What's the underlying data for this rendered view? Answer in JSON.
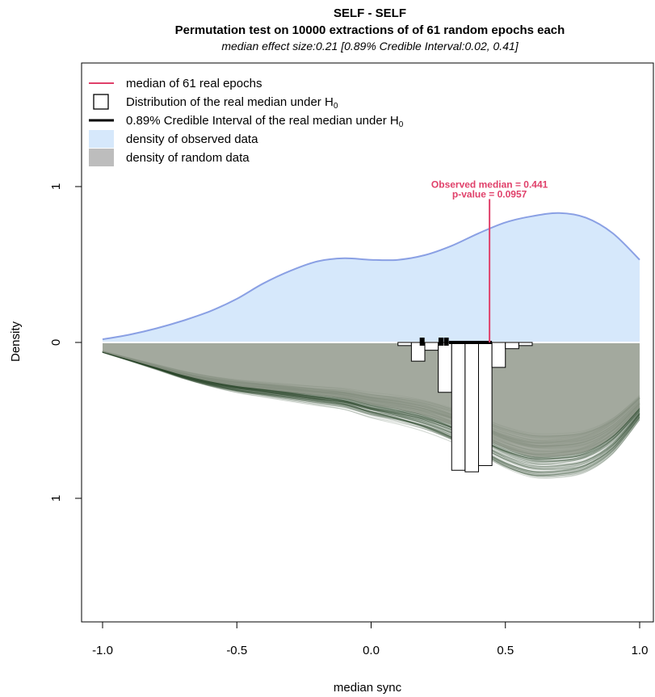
{
  "chart_data": {
    "type": "area",
    "title": "SELF - SELF",
    "subtitle": "Permutation test on 10000 extractions of of 61 random epochs each",
    "note": "median effect size:0.21 [0.89% Credible Interval:0.02, 0.41]",
    "xlabel": "median sync",
    "ylabel": "Density",
    "xlim": [
      -1.0,
      1.0
    ],
    "ylim": [
      -1.8,
      1.8
    ],
    "x_ticks": [
      -1.0,
      -0.5,
      0.0,
      0.5,
      1.0
    ],
    "x_tick_labels": [
      "-1.0",
      "-0.5",
      "0.0",
      "0.5",
      "1.0"
    ],
    "y_ticks": [
      1,
      0,
      -1
    ],
    "y_tick_labels": [
      "1",
      "0",
      "1"
    ],
    "grid": false,
    "legend_placement": "top-left",
    "legend": [
      {
        "label": "median of 61 real epochs",
        "symbol": "line",
        "color": "#e0406a"
      },
      {
        "label": "Distribution of the real median under H",
        "sub": "0",
        "symbol": "box",
        "color": "#000000"
      },
      {
        "label": "0.89% Credible Interval of the real median under H",
        "sub": "0",
        "symbol": "thick-line",
        "color": "#000000"
      },
      {
        "label": "density of observed data",
        "symbol": "fill",
        "color": "#d6e8fb"
      },
      {
        "label": "density of random data",
        "symbol": "fill",
        "color": "#bdbdbd"
      }
    ],
    "observed_density": {
      "x": [
        -1.0,
        -0.9,
        -0.8,
        -0.7,
        -0.6,
        -0.5,
        -0.4,
        -0.3,
        -0.2,
        -0.1,
        0.0,
        0.1,
        0.2,
        0.3,
        0.4,
        0.5,
        0.6,
        0.7,
        0.8,
        0.9,
        1.0
      ],
      "y": [
        0.02,
        0.05,
        0.09,
        0.14,
        0.2,
        0.28,
        0.38,
        0.46,
        0.52,
        0.54,
        0.53,
        0.53,
        0.56,
        0.62,
        0.7,
        0.77,
        0.81,
        0.83,
        0.8,
        0.7,
        0.53
      ]
    },
    "random_density_envelope": {
      "x": [
        -1.0,
        -0.9,
        -0.8,
        -0.7,
        -0.6,
        -0.5,
        -0.4,
        -0.3,
        -0.2,
        -0.1,
        0.0,
        0.1,
        0.2,
        0.3,
        0.4,
        0.5,
        0.6,
        0.7,
        0.8,
        0.9,
        1.0
      ],
      "y": [
        -0.06,
        -0.11,
        -0.16,
        -0.21,
        -0.25,
        -0.28,
        -0.3,
        -0.32,
        -0.34,
        -0.36,
        -0.4,
        -0.43,
        -0.47,
        -0.53,
        -0.6,
        -0.68,
        -0.73,
        -0.73,
        -0.7,
        -0.6,
        -0.42
      ]
    },
    "random_density_curves": 120,
    "permutation_histogram": {
      "bins": [
        {
          "x0": 0.1,
          "x1": 0.15,
          "height": 0.02
        },
        {
          "x0": 0.15,
          "x1": 0.2,
          "height": 0.12
        },
        {
          "x0": 0.2,
          "x1": 0.25,
          "height": 0.05
        },
        {
          "x0": 0.25,
          "x1": 0.3,
          "height": 0.32
        },
        {
          "x0": 0.3,
          "x1": 0.35,
          "height": 0.82
        },
        {
          "x0": 0.35,
          "x1": 0.4,
          "height": 0.83
        },
        {
          "x0": 0.4,
          "x1": 0.45,
          "height": 0.79
        },
        {
          "x0": 0.45,
          "x1": 0.5,
          "height": 0.16
        },
        {
          "x0": 0.5,
          "x1": 0.55,
          "height": 0.04
        },
        {
          "x0": 0.55,
          "x1": 0.6,
          "height": 0.02
        }
      ]
    },
    "credible_interval": [
      0.29,
      0.45
    ],
    "ci_ticks": [
      0.19,
      0.26,
      0.28
    ],
    "observed_median": {
      "value": 0.441,
      "label_line1": "Observed median = 0.441",
      "label_line2": "p-value = 0.0957",
      "line_top": 0.92
    }
  }
}
